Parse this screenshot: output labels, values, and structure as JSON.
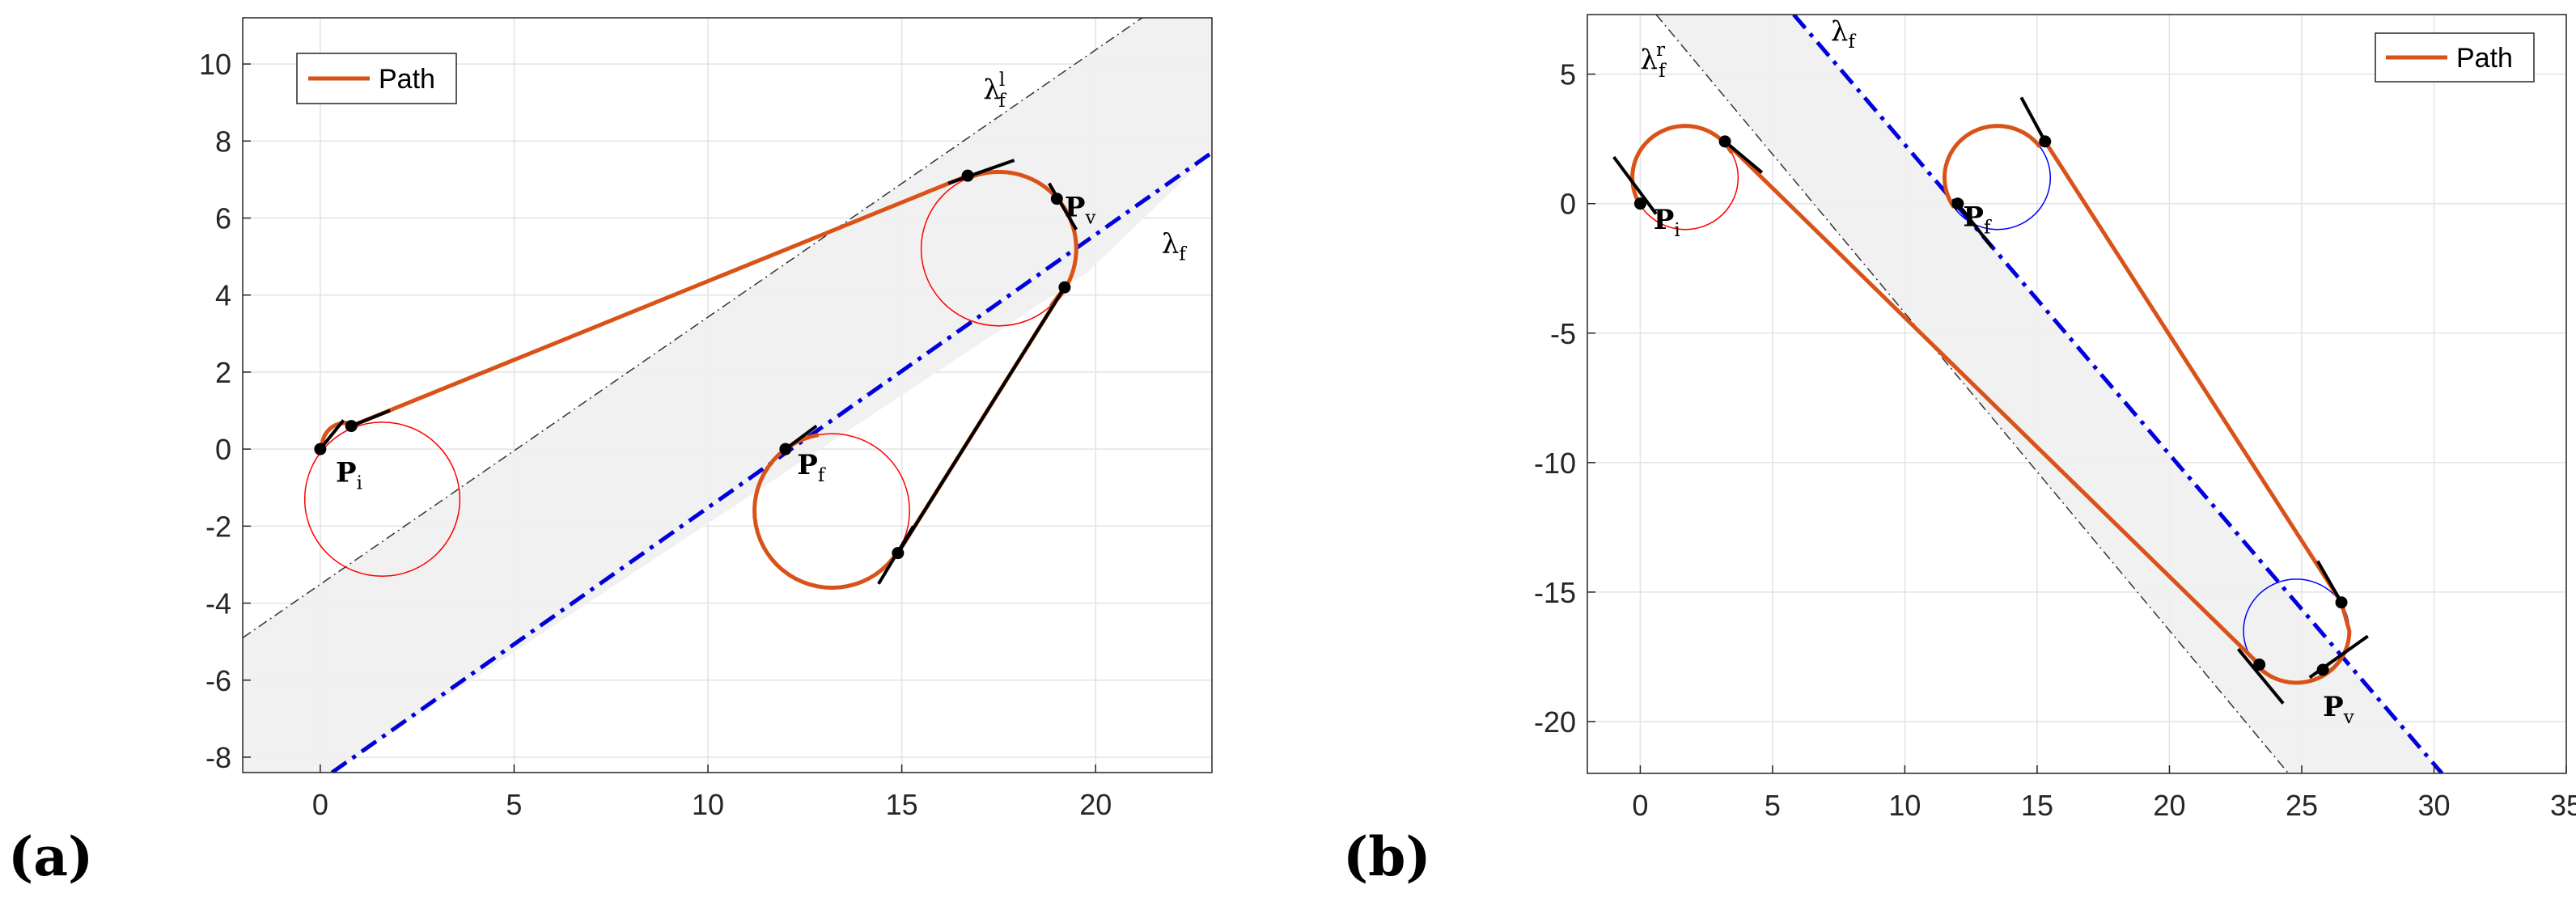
{
  "chart_data": [
    {
      "id": "a",
      "type": "line",
      "panel_label": "(a)",
      "xlim": [
        -2,
        23
      ],
      "ylim": [
        -8.4,
        11.2
      ],
      "xticks": [
        0,
        5,
        10,
        15,
        20
      ],
      "yticks": [
        -8,
        -6,
        -4,
        -2,
        0,
        2,
        4,
        6,
        8,
        10
      ],
      "grid": true,
      "legend": {
        "label": "Path",
        "placement": "top-left",
        "color": "#D95319"
      },
      "band": [
        [
          -2,
          -4.9
        ],
        [
          21.2,
          11.2
        ],
        [
          23,
          11.2
        ],
        [
          23,
          7.7
        ],
        [
          19.8,
          4.6
        ],
        [
          0.3,
          -8.4
        ],
        [
          -2,
          -8.4
        ]
      ],
      "lambda_f": {
        "from": [
          0.3,
          -8.4
        ],
        "to": [
          23,
          7.7
        ],
        "label": "λ",
        "sub": "f",
        "label_at": [
          21.7,
          5.1
        ]
      },
      "lambda_aux": {
        "from": [
          -2,
          -4.9
        ],
        "to": [
          21.2,
          11.2
        ],
        "label": "λ",
        "sub": "f",
        "sup": "l",
        "label_at": [
          17.1,
          9.1
        ]
      },
      "circles": [
        {
          "center": [
            1.6,
            -1.3
          ],
          "r": 2.0,
          "color": "#ff0000"
        },
        {
          "center": [
            17.5,
            5.2
          ],
          "r": 2.0,
          "color": "#ff0000"
        },
        {
          "center": [
            13.2,
            -1.6
          ],
          "r": 2.0,
          "color": "#ff0000"
        }
      ],
      "path": {
        "color": "#D95319",
        "segments": [
          {
            "kind": "arc",
            "center": [
              0.65,
              0.08
            ],
            "r": 0.6,
            "a0": 190,
            "a1": 80
          },
          {
            "kind": "line",
            "from": [
              0.8,
              0.6
            ],
            "to": [
              16.7,
              7.1
            ]
          },
          {
            "kind": "arc",
            "center": [
              17.5,
              5.2
            ],
            "r": 2.0,
            "a0": 112,
            "a1": -47
          },
          {
            "kind": "line",
            "from": [
              19.2,
              4.2
            ],
            "to": [
              14.9,
              -2.7
            ]
          },
          {
            "kind": "arc",
            "center": [
              13.2,
              -1.6
            ],
            "r": 2.0,
            "a0": -33,
            "a1": -260
          }
        ]
      },
      "points": [
        [
          0,
          0
        ],
        [
          0.8,
          0.6
        ],
        [
          16.7,
          7.1
        ],
        [
          19.0,
          6.5
        ],
        [
          19.2,
          4.2
        ],
        [
          14.9,
          -2.7
        ],
        [
          12.0,
          0.0
        ]
      ],
      "tangents": [
        {
          "from": [
            0,
            0
          ],
          "to": [
            0.6,
            0.75
          ]
        },
        {
          "from": [
            0.8,
            0.6
          ],
          "to": [
            1.8,
            1.0
          ]
        },
        {
          "from": [
            16.2,
            6.9
          ],
          "to": [
            17.9,
            7.5
          ]
        },
        {
          "from": [
            18.8,
            6.9
          ],
          "to": [
            19.5,
            5.7
          ]
        },
        {
          "from": [
            19.2,
            4.2
          ],
          "to": [
            14.9,
            -2.7
          ]
        },
        {
          "from": [
            14.4,
            -3.5
          ],
          "to": [
            15.3,
            -2.0
          ]
        },
        {
          "from": [
            12.0,
            0.0
          ],
          "to": [
            12.8,
            0.6
          ]
        }
      ],
      "point_labels": [
        {
          "text": "P",
          "sub": "i",
          "at": [
            0.4,
            -0.6
          ]
        },
        {
          "text": "P",
          "sub": "v",
          "at": [
            19.2,
            6.3
          ]
        },
        {
          "text": "P",
          "sub": "f",
          "at": [
            12.3,
            -0.4
          ]
        }
      ]
    },
    {
      "id": "b",
      "type": "line",
      "panel_label": "(b)",
      "xlim": [
        -2,
        35
      ],
      "ylim": [
        -22,
        7.3
      ],
      "xticks": [
        0,
        5,
        10,
        15,
        20,
        25,
        30,
        35
      ],
      "yticks": [
        -20,
        -15,
        -10,
        -5,
        0,
        5
      ],
      "grid": true,
      "legend": {
        "label": "Path",
        "placement": "top-right",
        "color": "#D95319"
      },
      "band": [
        [
          0.6,
          7.3
        ],
        [
          24.5,
          -22
        ],
        [
          30.3,
          -22
        ],
        [
          5.8,
          7.3
        ]
      ],
      "lambda_f": {
        "from": [
          5.8,
          7.3
        ],
        "to": [
          30.3,
          -22
        ],
        "label": "λ",
        "sub": "f",
        "label_at": [
          7.2,
          6.3
        ]
      },
      "lambda_aux": {
        "from": [
          0.6,
          7.3
        ],
        "to": [
          24.5,
          -22
        ],
        "label": "λ",
        "sub": "f",
        "sup": "r",
        "label_at": [
          0.0,
          5.2
        ]
      },
      "circles": [
        {
          "center": [
            1.7,
            1.0
          ],
          "r": 2.0,
          "color": "#ff0000"
        },
        {
          "center": [
            13.5,
            1.0
          ],
          "r": 2.0,
          "color": "#0000ff"
        },
        {
          "center": [
            24.8,
            -16.5
          ],
          "r": 2.0,
          "color": "#0000ff"
        }
      ],
      "path": {
        "color": "#D95319",
        "segments": [
          {
            "kind": "arc",
            "center": [
              1.7,
              1.0
            ],
            "r": 2.0,
            "a0": 210,
            "a1": 30
          },
          {
            "kind": "line",
            "from": [
              3.2,
              2.4
            ],
            "to": [
              23.4,
              -17.8
            ]
          },
          {
            "kind": "arc",
            "center": [
              24.8,
              -16.5
            ],
            "r": 2.0,
            "a0": 225,
            "a1": 360
          },
          {
            "kind": "line",
            "from": [
              26.5,
              -15.4
            ],
            "to": [
              15.3,
              2.4
            ]
          },
          {
            "kind": "arc",
            "center": [
              13.5,
              1.0
            ],
            "r": 2.0,
            "a0": 38,
            "a1": 215
          }
        ]
      },
      "points": [
        [
          0,
          0
        ],
        [
          3.2,
          2.4
        ],
        [
          23.4,
          -17.8
        ],
        [
          25.8,
          -18.0
        ],
        [
          26.5,
          -15.4
        ],
        [
          15.3,
          2.4
        ],
        [
          12.0,
          0.0
        ]
      ],
      "tangents": [
        {
          "from": [
            -1.0,
            1.8
          ],
          "to": [
            0.6,
            -0.4
          ]
        },
        {
          "from": [
            3.2,
            2.4
          ],
          "to": [
            4.6,
            1.2
          ]
        },
        {
          "from": [
            22.6,
            -17.2
          ],
          "to": [
            24.3,
            -19.3
          ]
        },
        {
          "from": [
            25.3,
            -18.3
          ],
          "to": [
            27.5,
            -16.7
          ]
        },
        {
          "from": [
            25.6,
            -13.8
          ],
          "to": [
            26.5,
            -15.4
          ]
        },
        {
          "from": [
            14.4,
            4.1
          ],
          "to": [
            15.3,
            2.4
          ]
        },
        {
          "from": [
            12.0,
            0.0
          ],
          "to": [
            13.3,
            -1.7
          ]
        }
      ],
      "point_labels": [
        {
          "text": "P",
          "sub": "i",
          "at": [
            0.5,
            -0.6
          ]
        },
        {
          "text": "P",
          "sub": "f",
          "at": [
            12.2,
            -0.5
          ]
        },
        {
          "text": "P",
          "sub": "v",
          "at": [
            25.8,
            -19.4
          ]
        }
      ]
    }
  ]
}
